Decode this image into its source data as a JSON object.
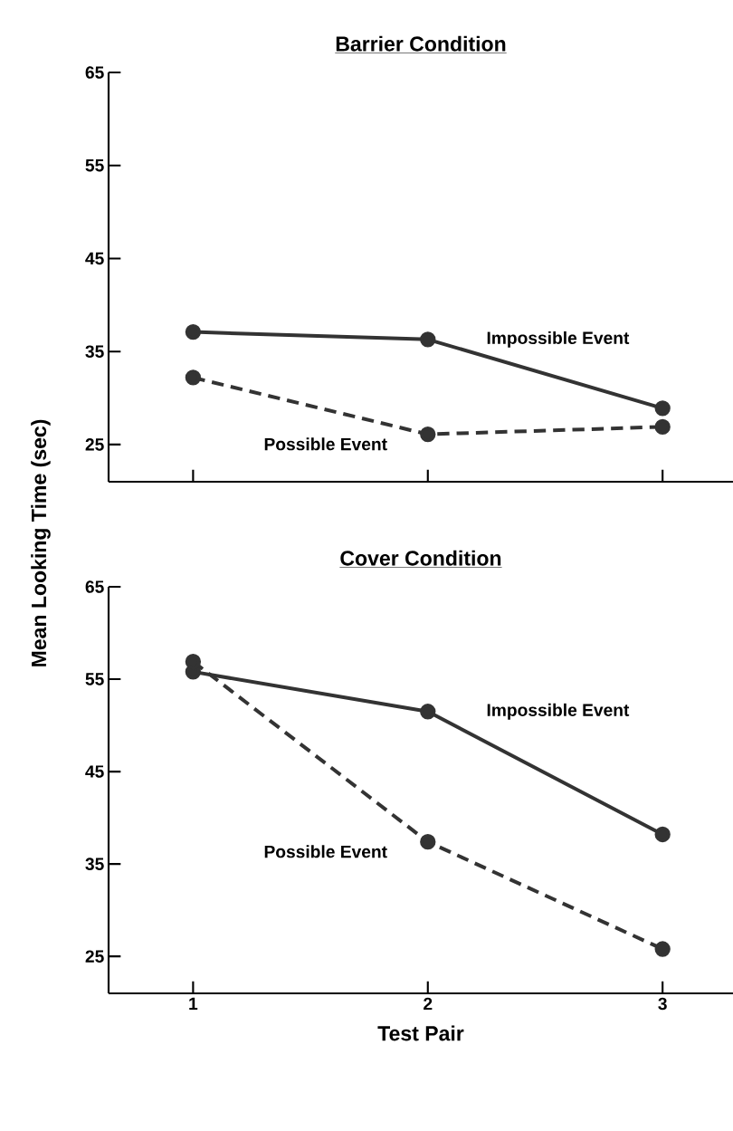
{
  "chart_data": [
    {
      "type": "line",
      "title": "Barrier Condition",
      "ylabel": "Mean Looking Time (sec)",
      "x": [
        1,
        2,
        3
      ],
      "xlim": [
        0.64,
        3.3
      ],
      "xticks": [
        1,
        2,
        3
      ],
      "ylim": [
        21,
        65
      ],
      "yticks": [
        25,
        35,
        45,
        55,
        65
      ],
      "tick_labels": "y",
      "marker": "circle",
      "series": [
        {
          "name": "Impossible Event",
          "color": "#333333",
          "line_style": "solid",
          "values": [
            37.1,
            36.3,
            28.9
          ]
        },
        {
          "name": "Possible Event",
          "color": "#333333",
          "line_style": "dashed",
          "values": [
            32.2,
            26.1,
            26.9
          ]
        }
      ]
    },
    {
      "type": "line",
      "title": "Cover Condition",
      "xlabel": "Test Pair",
      "x": [
        1,
        2,
        3
      ],
      "xlim": [
        0.64,
        3.3
      ],
      "xticks": [
        1,
        2,
        3
      ],
      "ylim": [
        21,
        65
      ],
      "yticks": [
        25,
        35,
        45,
        55,
        65
      ],
      "marker": "circle",
      "series": [
        {
          "name": "Impossible Event",
          "color": "#333333",
          "line_style": "solid",
          "values": [
            55.8,
            51.5,
            38.2
          ]
        },
        {
          "name": "Possible Event",
          "color": "#333333",
          "line_style": "dashed",
          "values": [
            56.9,
            37.4,
            25.8
          ]
        }
      ]
    }
  ]
}
